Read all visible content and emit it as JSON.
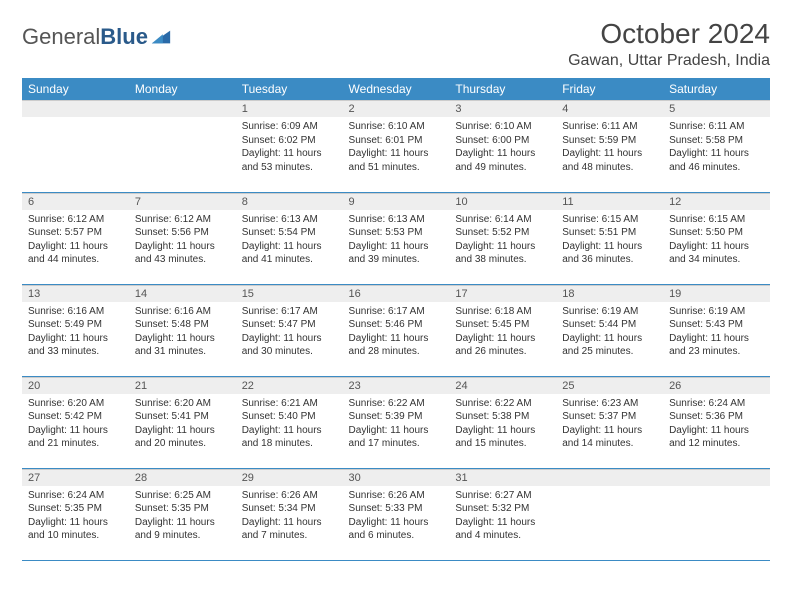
{
  "branding": {
    "logo_word1": "General",
    "logo_word2": "Blue",
    "logo_color_primary": "#3b8bc4",
    "logo_color_text": "#555555"
  },
  "header": {
    "month_title": "October 2024",
    "location": "Gawan, Uttar Pradesh, India"
  },
  "calendar": {
    "type": "table",
    "header_bg": "#3b8bc4",
    "header_fg": "#ffffff",
    "daynum_bg": "#eeeeee",
    "row_border_color": "#3b8bc4",
    "columns": [
      "Sunday",
      "Monday",
      "Tuesday",
      "Wednesday",
      "Thursday",
      "Friday",
      "Saturday"
    ],
    "weeks": [
      [
        null,
        null,
        {
          "n": "1",
          "sr": "6:09 AM",
          "ss": "6:02 PM",
          "dl": "11 hours and 53 minutes."
        },
        {
          "n": "2",
          "sr": "6:10 AM",
          "ss": "6:01 PM",
          "dl": "11 hours and 51 minutes."
        },
        {
          "n": "3",
          "sr": "6:10 AM",
          "ss": "6:00 PM",
          "dl": "11 hours and 49 minutes."
        },
        {
          "n": "4",
          "sr": "6:11 AM",
          "ss": "5:59 PM",
          "dl": "11 hours and 48 minutes."
        },
        {
          "n": "5",
          "sr": "6:11 AM",
          "ss": "5:58 PM",
          "dl": "11 hours and 46 minutes."
        }
      ],
      [
        {
          "n": "6",
          "sr": "6:12 AM",
          "ss": "5:57 PM",
          "dl": "11 hours and 44 minutes."
        },
        {
          "n": "7",
          "sr": "6:12 AM",
          "ss": "5:56 PM",
          "dl": "11 hours and 43 minutes."
        },
        {
          "n": "8",
          "sr": "6:13 AM",
          "ss": "5:54 PM",
          "dl": "11 hours and 41 minutes."
        },
        {
          "n": "9",
          "sr": "6:13 AM",
          "ss": "5:53 PM",
          "dl": "11 hours and 39 minutes."
        },
        {
          "n": "10",
          "sr": "6:14 AM",
          "ss": "5:52 PM",
          "dl": "11 hours and 38 minutes."
        },
        {
          "n": "11",
          "sr": "6:15 AM",
          "ss": "5:51 PM",
          "dl": "11 hours and 36 minutes."
        },
        {
          "n": "12",
          "sr": "6:15 AM",
          "ss": "5:50 PM",
          "dl": "11 hours and 34 minutes."
        }
      ],
      [
        {
          "n": "13",
          "sr": "6:16 AM",
          "ss": "5:49 PM",
          "dl": "11 hours and 33 minutes."
        },
        {
          "n": "14",
          "sr": "6:16 AM",
          "ss": "5:48 PM",
          "dl": "11 hours and 31 minutes."
        },
        {
          "n": "15",
          "sr": "6:17 AM",
          "ss": "5:47 PM",
          "dl": "11 hours and 30 minutes."
        },
        {
          "n": "16",
          "sr": "6:17 AM",
          "ss": "5:46 PM",
          "dl": "11 hours and 28 minutes."
        },
        {
          "n": "17",
          "sr": "6:18 AM",
          "ss": "5:45 PM",
          "dl": "11 hours and 26 minutes."
        },
        {
          "n": "18",
          "sr": "6:19 AM",
          "ss": "5:44 PM",
          "dl": "11 hours and 25 minutes."
        },
        {
          "n": "19",
          "sr": "6:19 AM",
          "ss": "5:43 PM",
          "dl": "11 hours and 23 minutes."
        }
      ],
      [
        {
          "n": "20",
          "sr": "6:20 AM",
          "ss": "5:42 PM",
          "dl": "11 hours and 21 minutes."
        },
        {
          "n": "21",
          "sr": "6:20 AM",
          "ss": "5:41 PM",
          "dl": "11 hours and 20 minutes."
        },
        {
          "n": "22",
          "sr": "6:21 AM",
          "ss": "5:40 PM",
          "dl": "11 hours and 18 minutes."
        },
        {
          "n": "23",
          "sr": "6:22 AM",
          "ss": "5:39 PM",
          "dl": "11 hours and 17 minutes."
        },
        {
          "n": "24",
          "sr": "6:22 AM",
          "ss": "5:38 PM",
          "dl": "11 hours and 15 minutes."
        },
        {
          "n": "25",
          "sr": "6:23 AM",
          "ss": "5:37 PM",
          "dl": "11 hours and 14 minutes."
        },
        {
          "n": "26",
          "sr": "6:24 AM",
          "ss": "5:36 PM",
          "dl": "11 hours and 12 minutes."
        }
      ],
      [
        {
          "n": "27",
          "sr": "6:24 AM",
          "ss": "5:35 PM",
          "dl": "11 hours and 10 minutes."
        },
        {
          "n": "28",
          "sr": "6:25 AM",
          "ss": "5:35 PM",
          "dl": "11 hours and 9 minutes."
        },
        {
          "n": "29",
          "sr": "6:26 AM",
          "ss": "5:34 PM",
          "dl": "11 hours and 7 minutes."
        },
        {
          "n": "30",
          "sr": "6:26 AM",
          "ss": "5:33 PM",
          "dl": "11 hours and 6 minutes."
        },
        {
          "n": "31",
          "sr": "6:27 AM",
          "ss": "5:32 PM",
          "dl": "11 hours and 4 minutes."
        },
        null,
        null
      ]
    ],
    "labels": {
      "sunrise": "Sunrise:",
      "sunset": "Sunset:",
      "daylight": "Daylight:"
    }
  }
}
